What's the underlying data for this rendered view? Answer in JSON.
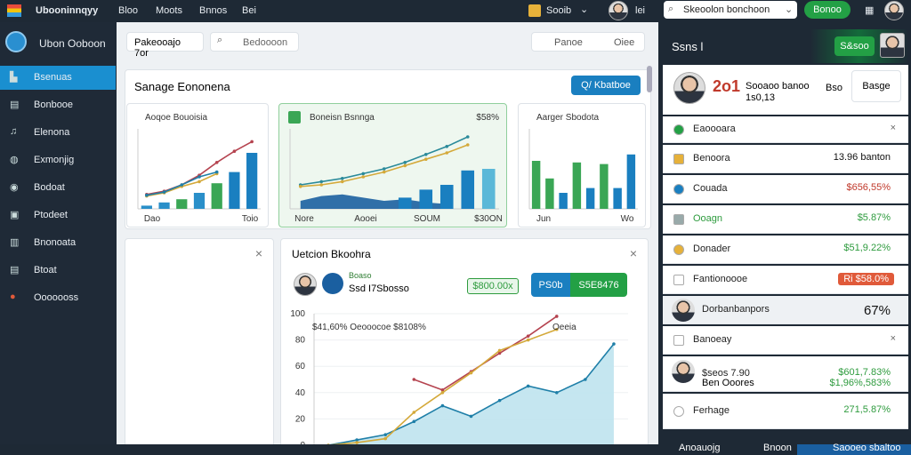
{
  "topbar": {
    "logo": "Ubooninnqyy",
    "nav": [
      "Bloo",
      "Moots",
      "Bnnos",
      "Bei"
    ],
    "user": "Sooib",
    "user_action": "lei",
    "search": "Skeoolon bonchoon",
    "button": "Bonoo"
  },
  "sidebar": {
    "title": "Ubon Ooboon",
    "items": [
      "Bsenuas",
      "Bonbooe",
      "Elenona",
      "Exmonjig",
      "Bodoat",
      "Ptodeet",
      "Bnonoata",
      "Btoat",
      "Ooooooss"
    ]
  },
  "toolbar": {
    "input": "Pakeooajo 7or",
    "search": "Bedoooon",
    "filter": "Panoe",
    "filter_value": "Oiee"
  },
  "overview": {
    "title": "Sanage Eononena",
    "button": "Q/ Kbatboe",
    "charts": [
      {
        "title": "Aoqoe Bouoisia",
        "labels": [
          "Dao",
          "Toio"
        ],
        "ylim": [
          0,
          100
        ],
        "bars": {
          "colors": [
            "#2a8fc9",
            "#2a8fc9",
            "#3aa655",
            "#2a8fc9",
            "#3aa655",
            "#1a7fc0",
            "#1a7fc0"
          ],
          "values": [
            4,
            8,
            12,
            20,
            32,
            46,
            70
          ]
        },
        "lines": [
          {
            "color": "#b5434f",
            "values": [
              18,
              22,
              30,
              42,
              58,
              72,
              84
            ]
          },
          {
            "color": "#d4a93a",
            "values": [
              16,
              20,
              28,
              34,
              44,
              null,
              null
            ]
          },
          {
            "color": "#1f7fa8",
            "values": [
              17,
              21,
              30,
              40,
              46,
              null,
              null
            ]
          }
        ]
      },
      {
        "title": "Boneisn Bsnnga",
        "value_label": "$58%",
        "labels": [
          "Nore",
          "Aooei",
          "SOUM",
          "$30ON"
        ],
        "ylim": [
          0,
          100
        ],
        "bars": {
          "colors": [
            "#1a7fc0",
            "#1a7fc0",
            "#1a7fc0",
            "#1a7fc0",
            "#1a7fc0",
            "#1a7fc0",
            "#1a7fc0",
            "#1a7fc0",
            "#1a7fc0",
            "#5bb8d8"
          ],
          "values": [
            null,
            null,
            null,
            null,
            null,
            14,
            24,
            30,
            48,
            50
          ]
        },
        "area": {
          "color": "#1b5fa0",
          "values": [
            10,
            16,
            18,
            14,
            10,
            12,
            8,
            6,
            null,
            null
          ]
        },
        "lines": [
          {
            "color": "#2a8a9a",
            "values": [
              30,
              34,
              38,
              44,
              50,
              58,
              68,
              78,
              90,
              null
            ]
          },
          {
            "color": "#d4a93a",
            "values": [
              28,
              30,
              34,
              40,
              46,
              54,
              62,
              70,
              80,
              null
            ]
          }
        ]
      },
      {
        "title": "Aarger Sbodota",
        "labels": [
          "Jun",
          "Wo"
        ],
        "ylim": [
          0,
          100
        ],
        "bars": {
          "colors": [
            "#3aa655",
            "#3aa655",
            "#1a7fc0",
            "#3aa655",
            "#1a7fc0",
            "#3aa655",
            "#1a7fc0",
            "#1a7fc0"
          ],
          "values": [
            60,
            38,
            20,
            58,
            26,
            56,
            26,
            68
          ]
        },
        "lines": []
      }
    ]
  },
  "detail": {
    "title": "Uetcion Bkoohra",
    "name": "Boaso",
    "sub": "Ssd I7Sbosso",
    "badge": "$800.00x",
    "button_left": "PS0b",
    "button_right": "S5E8476",
    "annotation": "$41,60% Oeooocoe $8108%",
    "legend": "Oeeia",
    "ylim": [
      0,
      100
    ],
    "yticks": [
      100,
      80,
      60,
      40,
      20,
      0
    ],
    "area": {
      "color": "#bfe3ee",
      "values": [
        0,
        4,
        8,
        18,
        30,
        22,
        34,
        45,
        40,
        50,
        77
      ]
    },
    "lines": [
      {
        "color": "#1f7fa8",
        "values": [
          0,
          4,
          8,
          18,
          30,
          22,
          34,
          45,
          40,
          50,
          77
        ]
      },
      {
        "color": "#b5434f",
        "values": [
          null,
          null,
          null,
          50,
          42,
          56,
          70,
          83,
          98,
          null,
          null
        ]
      },
      {
        "color": "#d4a93a",
        "values": [
          0,
          2,
          5,
          25,
          40,
          55,
          72,
          80,
          88,
          null,
          null
        ]
      }
    ]
  },
  "panel": {
    "title": "Ssns l",
    "button": "S&soo",
    "profile": {
      "number": "2o1",
      "line1": "Sooaoo banoo",
      "line1_value": "Bso",
      "line2": "1s0,13",
      "action": "Basge"
    },
    "rows": [
      {
        "label": "Eaoooara",
        "value": "×",
        "color": "#666"
      },
      {
        "label": "Benoora",
        "value": "13.96 banton",
        "color": "#111"
      },
      {
        "label": "Couada",
        "value": "$656,55%",
        "color": "#c0392b"
      },
      {
        "label": "Ooagn",
        "value": "$5.87%",
        "color": "#2e9b3e"
      },
      {
        "label": "Donader",
        "value": "$51,9.22%",
        "color": "#2e9b3e"
      },
      {
        "label": "Fantionoooe",
        "value": "Ri $58.0%",
        "color": "#e05a3a"
      },
      {
        "label": "Dorbanbanpors",
        "value": "67%",
        "color": "#111"
      },
      {
        "label": "Banoeay",
        "value": "×",
        "color": "#666"
      },
      {
        "label": "$seos 7.90",
        "value": "$601,7.83%",
        "color": "#2e9b3e"
      },
      {
        "label": "Ben Ooores",
        "value": "$1,96%,583%",
        "color": "#2e9b3e"
      },
      {
        "label": "Ferhage",
        "value": "271,5.87%",
        "color": "#2e9b3e"
      }
    ]
  },
  "bottombar": {
    "items": [
      "Anoauojg",
      "Bnoon",
      "Saooeo sbaltoo"
    ]
  }
}
